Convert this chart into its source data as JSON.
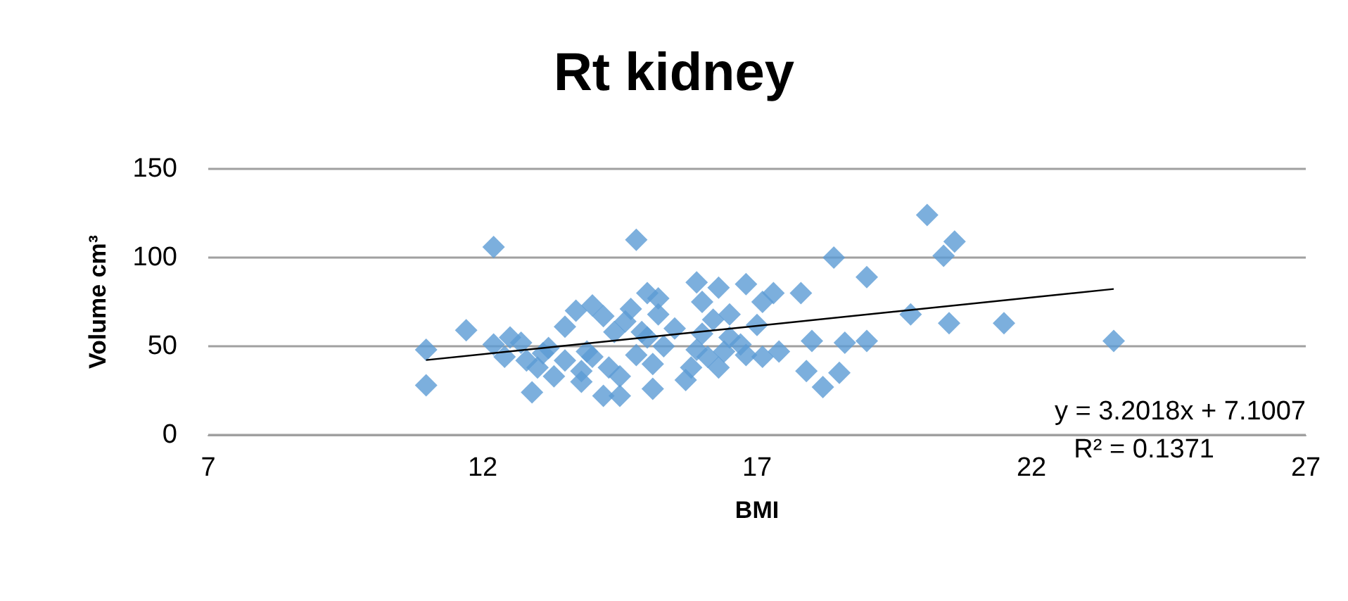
{
  "chart_data": {
    "type": "scatter",
    "title": "Rt kidney",
    "xlabel": "BMI",
    "ylabel": "Volume cm³",
    "xlim": [
      7,
      27
    ],
    "xticks": [
      7,
      12,
      17,
      22,
      27
    ],
    "ylim": [
      0,
      150
    ],
    "yticks": [
      0,
      50,
      100,
      150
    ],
    "grid": "y",
    "series": [
      {
        "marker": "diamond",
        "color": "#5b9bd5",
        "x": [
          10.97,
          10.97,
          11.7,
          12.2,
          12.2,
          12.4,
          12.5,
          12.7,
          12.8,
          12.9,
          13.0,
          13.1,
          13.2,
          13.3,
          13.5,
          13.5,
          13.7,
          13.8,
          13.8,
          13.9,
          14.0,
          14.0,
          14.2,
          14.2,
          14.3,
          14.4,
          14.5,
          14.5,
          14.6,
          14.7,
          14.8,
          14.8,
          14.9,
          15.0,
          15.0,
          15.1,
          15.1,
          15.2,
          15.2,
          15.3,
          15.5,
          15.7,
          15.8,
          15.9,
          15.9,
          16.0,
          16.0,
          16.1,
          16.2,
          16.3,
          16.3,
          16.4,
          16.5,
          16.5,
          16.7,
          16.8,
          16.8,
          17.0,
          17.1,
          17.1,
          17.3,
          17.4,
          17.8,
          17.9,
          18.0,
          18.2,
          18.4,
          18.5,
          18.6,
          19.0,
          19.0,
          19.8,
          20.1,
          20.4,
          20.5,
          20.6,
          21.5,
          23.5
        ],
        "values": [
          48,
          28,
          59,
          106,
          51,
          44,
          55,
          52,
          42,
          24,
          38,
          46,
          49,
          33,
          42,
          61,
          70,
          36,
          30,
          47,
          73,
          44,
          67,
          22,
          38,
          58,
          33,
          22,
          64,
          71,
          110,
          45,
          58,
          80,
          55,
          26,
          40,
          77,
          68,
          50,
          60,
          31,
          38,
          86,
          48,
          75,
          57,
          44,
          65,
          38,
          83,
          47,
          55,
          68,
          51,
          85,
          45,
          62,
          75,
          44,
          80,
          47,
          80,
          36,
          53,
          27,
          100,
          35,
          52,
          89,
          53,
          68,
          124,
          101,
          63,
          109,
          63,
          53
        ]
      },
      {
        "type": "line",
        "marker": "none",
        "color": "#000000",
        "x": [
          10.97,
          23.5
        ],
        "values": [
          42.2,
          82.3
        ]
      }
    ],
    "annotations": [
      "y = 3.2018x + 7.1007",
      "R² = 0.1371"
    ]
  }
}
